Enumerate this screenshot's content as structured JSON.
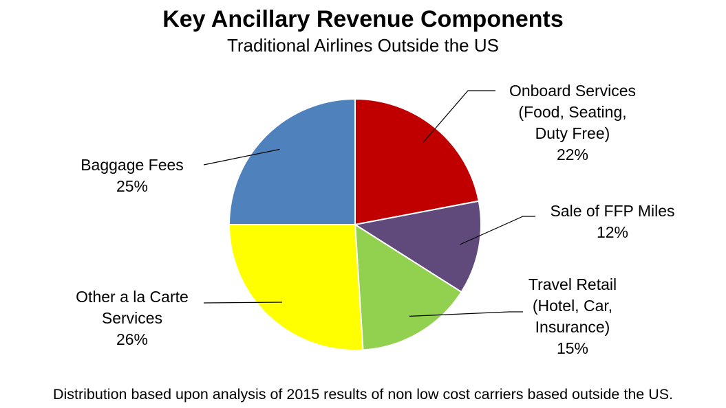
{
  "chart_data": {
    "type": "pie",
    "title": "Key Ancillary Revenue Components",
    "subtitle": "Traditional Airlines Outside the US",
    "slices": [
      {
        "label_lines": [
          "Onboard Services",
          "(Food, Seating,",
          "Duty Free)"
        ],
        "value": 22,
        "pct_label": "22%",
        "color": "#C00000"
      },
      {
        "label_lines": [
          "Sale of FFP Miles"
        ],
        "value": 12,
        "pct_label": "12%",
        "color": "#604A7B"
      },
      {
        "label_lines": [
          "Travel Retail",
          "(Hotel, Car,",
          "Insurance)"
        ],
        "value": 15,
        "pct_label": "15%",
        "color": "#92D050"
      },
      {
        "label_lines": [
          "Other a la Carte",
          "Services"
        ],
        "value": 26,
        "pct_label": "26%",
        "color": "#FFFF00"
      },
      {
        "label_lines": [
          "Baggage Fees"
        ],
        "value": 25,
        "pct_label": "25%",
        "color": "#4F81BD"
      }
    ],
    "footnote": "Distribution based upon analysis of 2015 results of non low cost carriers based outside the US."
  }
}
